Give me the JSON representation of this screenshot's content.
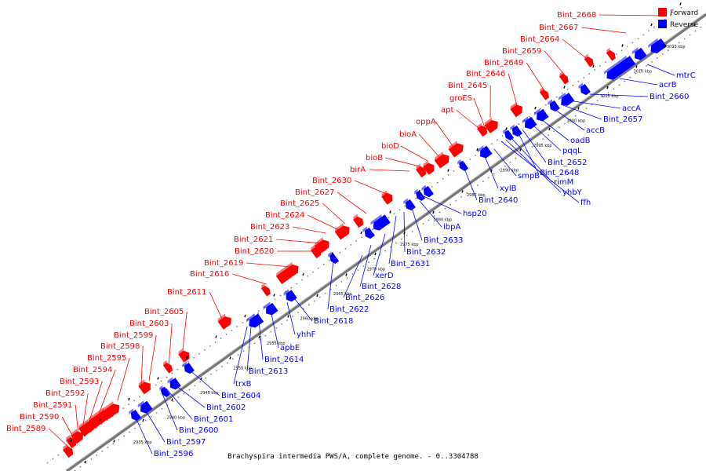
{
  "caption": "Brachyspira intermedia PWS/A, complete genome. - 0..3304788",
  "legend": {
    "forward": {
      "label": "Forward",
      "color": "#ff0000"
    },
    "reverse": {
      "label": "Reverse",
      "color": "#0000ff"
    }
  },
  "ticks": [
    "2935 kbp",
    "2940 kbp",
    "2945 kbp",
    "2950 kbp",
    "2955 kbp",
    "2960 kbp",
    "2965 kbp",
    "2970 kbp",
    "2975 kbp",
    "2980 kbp",
    "2985 kbp",
    "2990 kbp",
    "2995 kbp",
    "3000 kbp",
    "3005 kbp",
    "3010 kbp",
    "3015 kbp"
  ],
  "forward_labels": [
    "Bint_2668",
    "Bint_2667",
    "Bint_2664",
    "Bint_2659",
    "Bint_2649",
    "Bint_2646",
    "Bint_2645",
    "groES",
    "apt",
    "oppA",
    "bioA",
    "bioD",
    "bioB",
    "birA",
    "Bint_2630",
    "Bint_2627",
    "Bint_2625",
    "Bint_2624",
    "Bint_2623",
    "Bint_2621",
    "Bint_2620",
    "Bint_2619",
    "Bint_2616",
    "Bint_2611",
    "Bint_2605",
    "Bint_2603",
    "Bint_2599",
    "Bint_2598",
    "Bint_2595",
    "Bint_2594",
    "Bint_2593",
    "Bint_2592",
    "Bint_2591",
    "Bint_2590",
    "Bint_2589"
  ],
  "reverse_labels": [
    "mtrC",
    "acrB",
    "Bint_2660",
    "accA",
    "Bint_2657",
    "accB",
    "oadB",
    "pqqL",
    "Bint_2652",
    "Bint_2648",
    "rimM",
    "yhbY",
    "ffh",
    "smpB",
    "xylB",
    "Bint_2640",
    "hsp20",
    "ibpA",
    "Bint_2633",
    "Bint_2632",
    "Bint_2631",
    "xerD",
    "Bint_2628",
    "Bint_2626",
    "Bint_2622",
    "Bint_2618",
    "yhhF",
    "apbE",
    "Bint_2614",
    "Bint_2613",
    "trxB",
    "Bint_2604",
    "Bint_2602",
    "Bint_2601",
    "Bint_2600",
    "Bint_2597",
    "Bint_2596"
  ]
}
